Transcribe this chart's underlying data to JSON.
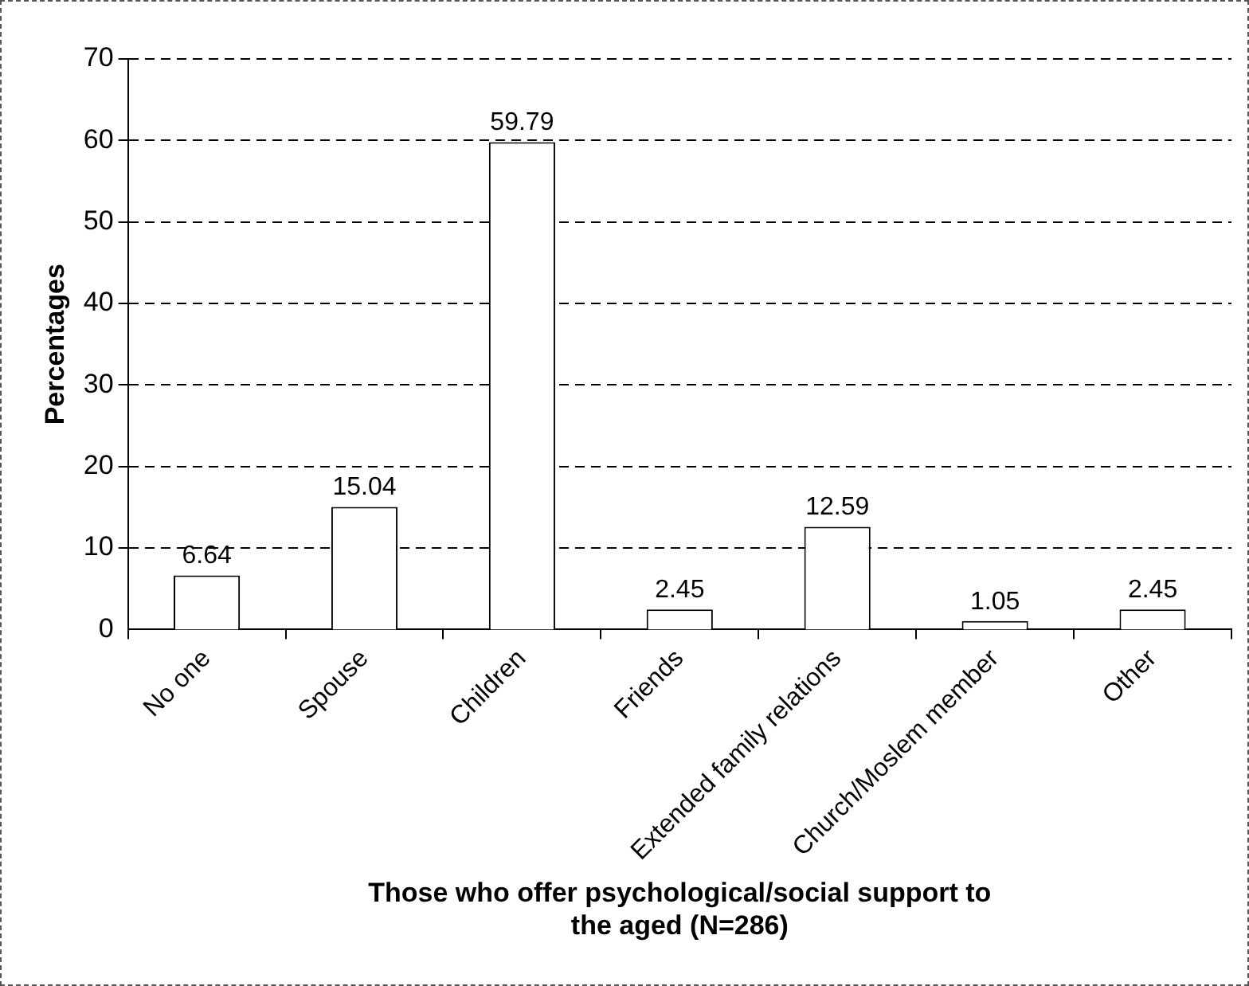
{
  "chart_data": {
    "type": "bar",
    "xlabel": "Those who offer psychological/social support to the aged (N=286)",
    "ylabel": "Percentages",
    "categories": [
      "No one",
      "Spouse",
      "Children",
      "Friends",
      "Extended family relations",
      "Church/Moslem member",
      "Other"
    ],
    "values": [
      6.64,
      15.04,
      59.79,
      2.45,
      12.59,
      1.05,
      2.45
    ],
    "color": "#ffffff",
    "ylim": [
      0,
      70
    ],
    "yticks": [
      0,
      10,
      20,
      30,
      40,
      50,
      60,
      70
    ],
    "grid": "y",
    "data_labels": true,
    "legend": false
  }
}
